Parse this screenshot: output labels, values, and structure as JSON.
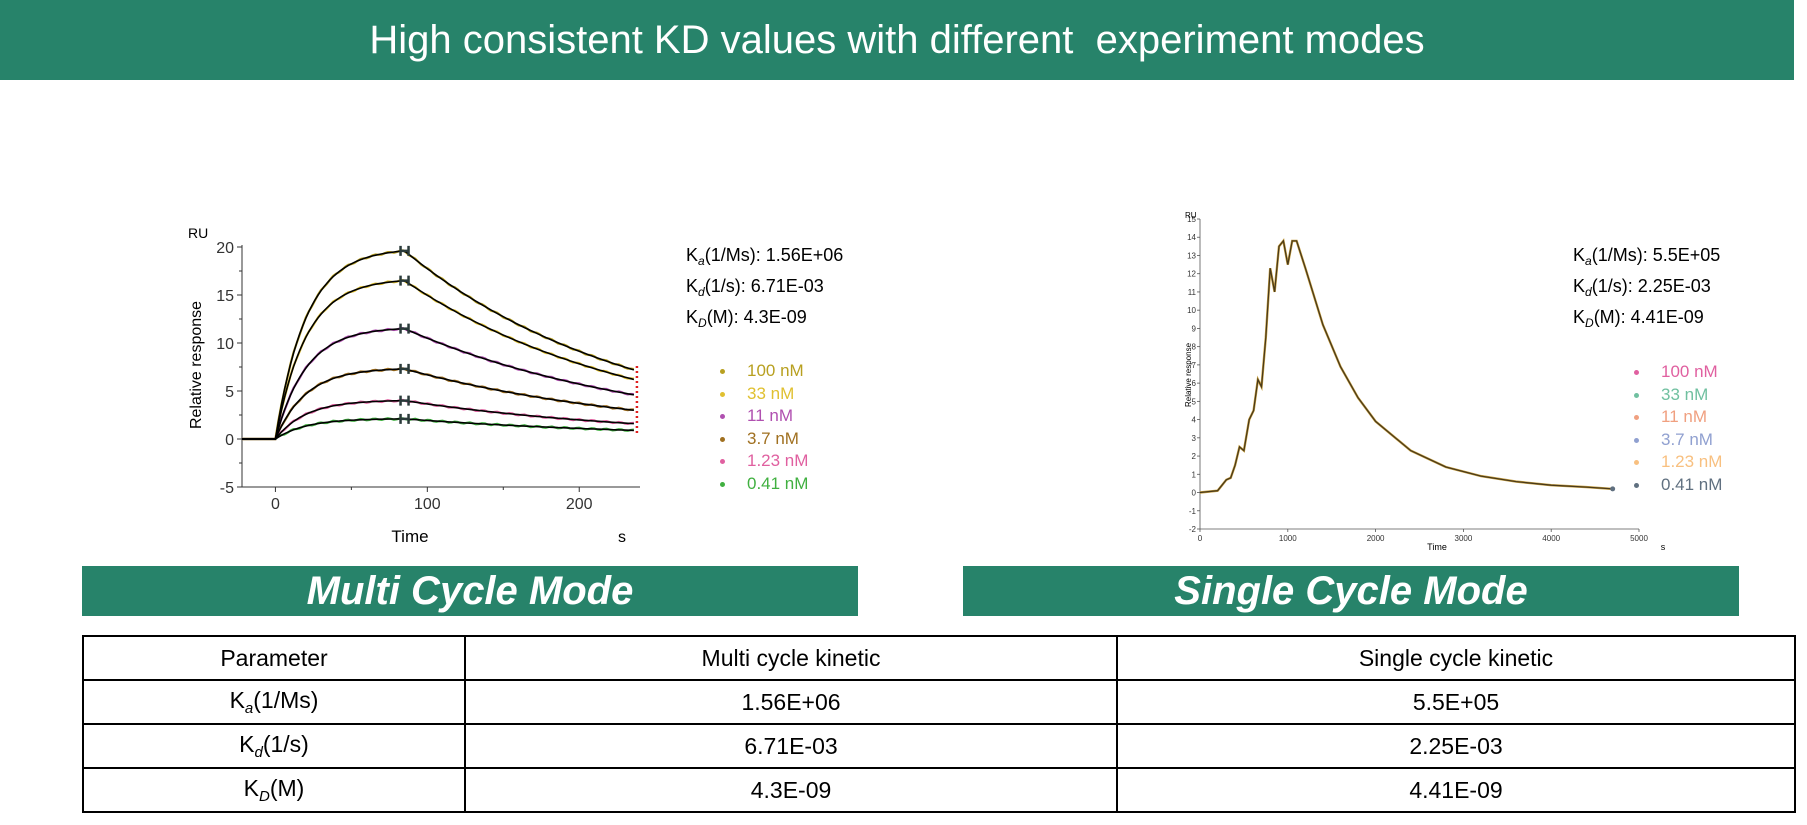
{
  "header": {
    "title": "High consistent KD values with different  experiment modes"
  },
  "banners": {
    "multi": "Multi Cycle Mode",
    "single": "Single Cycle Mode"
  },
  "colors": {
    "brand": "#27836a"
  },
  "kinetics_multi": [
    {
      "k": "K",
      "sub": "a",
      "rest": "(1/Ms): 1.56E+06"
    },
    {
      "k": "K",
      "sub": "d",
      "rest": "(1/s): 6.71E-03"
    },
    {
      "k": "K",
      "sub": "D",
      "rest": "(M): 4.3E-09"
    }
  ],
  "kinetics_single": [
    {
      "k": "K",
      "sub": "a",
      "rest": "(1/Ms): 5.5E+05"
    },
    {
      "k": "K",
      "sub": "d",
      "rest": "(1/s): 2.25E-03"
    },
    {
      "k": "K",
      "sub": "D",
      "rest": "(M): 4.41E-09"
    }
  ],
  "legend_multi": [
    {
      "label": "100 nM",
      "color": "#b8a020"
    },
    {
      "label": "33 nM",
      "color": "#e0c030"
    },
    {
      "label": "11 nM",
      "color": "#b050b0"
    },
    {
      "label": "3.7 nM",
      "color": "#a07020"
    },
    {
      "label": "1.23 nM",
      "color": "#e060a0"
    },
    {
      "label": "0.41 nM",
      "color": "#40b040"
    }
  ],
  "legend_single": [
    {
      "label": "100 nM",
      "color": "#e060a0"
    },
    {
      "label": "33 nM",
      "color": "#70c0a0"
    },
    {
      "label": "11 nM",
      "color": "#f0a080"
    },
    {
      "label": "3.7 nM",
      "color": "#90a0d0"
    },
    {
      "label": "1.23 nM",
      "color": "#f8c080"
    },
    {
      "label": "0.41 nM",
      "color": "#607080"
    }
  ],
  "table": {
    "headers": [
      "Parameter",
      "Multi cycle kinetic",
      "Single cycle kinetic"
    ],
    "rows": [
      {
        "k": "K",
        "sub": "a",
        "rest": "(1/Ms)",
        "multi": "1.56E+06",
        "single": "5.5E+05"
      },
      {
        "k": "K",
        "sub": "d",
        "rest": "(1/s)",
        "multi": "6.71E-03",
        "single": "2.25E-03"
      },
      {
        "k": "K",
        "sub": "D",
        "rest": "(M)",
        "multi": "4.3E-09",
        "single": "4.41E-09"
      }
    ]
  },
  "chart_data": [
    {
      "type": "line",
      "title": "",
      "xlabel": "Time",
      "x_unit": "s",
      "ylabel": "Relative response",
      "y_unit": "RU",
      "xlim": [
        -22,
        240
      ],
      "ylim": [
        -5,
        20
      ],
      "x_ticks": [
        0,
        100,
        200
      ],
      "y_ticks": [
        -5,
        0,
        5,
        10,
        15,
        20
      ],
      "association_end": 85,
      "series": [
        {
          "name": "100 nM",
          "plateau": 19.6,
          "end": 7.2
        },
        {
          "name": "33 nM",
          "plateau": 16.5,
          "end": 6.2
        },
        {
          "name": "11 nM",
          "plateau": 11.5,
          "end": 4.6
        },
        {
          "name": "3.7 nM",
          "plateau": 7.3,
          "end": 3.0
        },
        {
          "name": "1.23 nM",
          "plateau": 4.0,
          "end": 1.6
        },
        {
          "name": "0.41 nM",
          "plateau": 2.1,
          "end": 0.9
        }
      ]
    },
    {
      "type": "line",
      "title": "",
      "xlabel": "Time",
      "x_unit": "s",
      "ylabel": "Relative response",
      "y_unit": "RU",
      "xlim": [
        0,
        5000
      ],
      "ylim": [
        -2,
        15
      ],
      "x_ticks": [
        0,
        1000,
        2000,
        3000,
        4000,
        5000
      ],
      "y_ticks": [
        -2,
        -1,
        0,
        1,
        2,
        3,
        4,
        5,
        6,
        7,
        8,
        9,
        10,
        11,
        12,
        13,
        14,
        15
      ],
      "points": [
        [
          0,
          0
        ],
        [
          200,
          0.1
        ],
        [
          250,
          0.4
        ],
        [
          300,
          0.7
        ],
        [
          350,
          0.8
        ],
        [
          400,
          1.5
        ],
        [
          450,
          2.5
        ],
        [
          500,
          2.3
        ],
        [
          560,
          4.0
        ],
        [
          610,
          4.5
        ],
        [
          660,
          6.2
        ],
        [
          700,
          5.8
        ],
        [
          750,
          8.5
        ],
        [
          800,
          12.3
        ],
        [
          850,
          11.0
        ],
        [
          900,
          13.5
        ],
        [
          950,
          13.8
        ],
        [
          1000,
          12.5
        ],
        [
          1050,
          13.8
        ],
        [
          1100,
          13.8
        ],
        [
          1200,
          12.3
        ],
        [
          1400,
          9.2
        ],
        [
          1600,
          6.9
        ],
        [
          1800,
          5.2
        ],
        [
          2000,
          3.9
        ],
        [
          2400,
          2.3
        ],
        [
          2800,
          1.4
        ],
        [
          3200,
          0.9
        ],
        [
          3600,
          0.6
        ],
        [
          4000,
          0.4
        ],
        [
          4400,
          0.3
        ],
        [
          4700,
          0.2
        ]
      ]
    }
  ]
}
